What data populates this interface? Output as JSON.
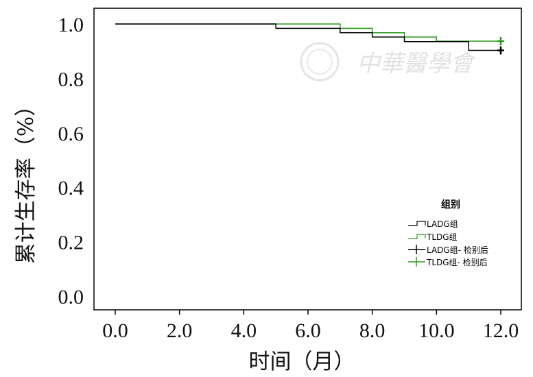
{
  "chart_data": {
    "type": "line",
    "subtype": "kaplan-meier-step",
    "title": "",
    "xlabel": "时间（月）",
    "ylabel": "累计生存率（%）",
    "xlim": [
      -0.5,
      12.5
    ],
    "ylim": [
      -0.05,
      1.05
    ],
    "xticks": [
      0,
      2,
      4,
      6,
      8,
      10,
      12
    ],
    "xtick_labels": [
      "0.0",
      "2.0",
      "4.0",
      "6.0",
      "8.0",
      "10.0",
      "12.0"
    ],
    "yticks": [
      0,
      0.2,
      0.4,
      0.6,
      0.8,
      1.0
    ],
    "ytick_labels": [
      "0.0",
      "0.2",
      "0.4",
      "0.6",
      "0.8",
      "1.0"
    ],
    "grid": false,
    "legend": {
      "title": "组别",
      "placement": "right",
      "entries": [
        "LADG组",
        "TLDG组",
        "LADG组- 检别后",
        "TLDG组- 检别后"
      ]
    },
    "series": [
      {
        "name": "LADG组",
        "color": "#000000",
        "x": [
          0,
          5,
          7,
          8,
          9,
          11,
          12
        ],
        "y": [
          1.0,
          0.984,
          0.968,
          0.952,
          0.935,
          0.903,
          0.903
        ],
        "censored": [
          {
            "x": 12,
            "y": 0.903
          }
        ]
      },
      {
        "name": "TLDG组",
        "color": "#2a9a1a",
        "x": [
          0,
          7,
          8,
          9,
          10,
          12
        ],
        "y": [
          1.0,
          0.984,
          0.968,
          0.952,
          0.937,
          0.937
        ],
        "censored": [
          {
            "x": 12,
            "y": 0.937
          }
        ]
      }
    ]
  },
  "watermark": "中華醫學會"
}
